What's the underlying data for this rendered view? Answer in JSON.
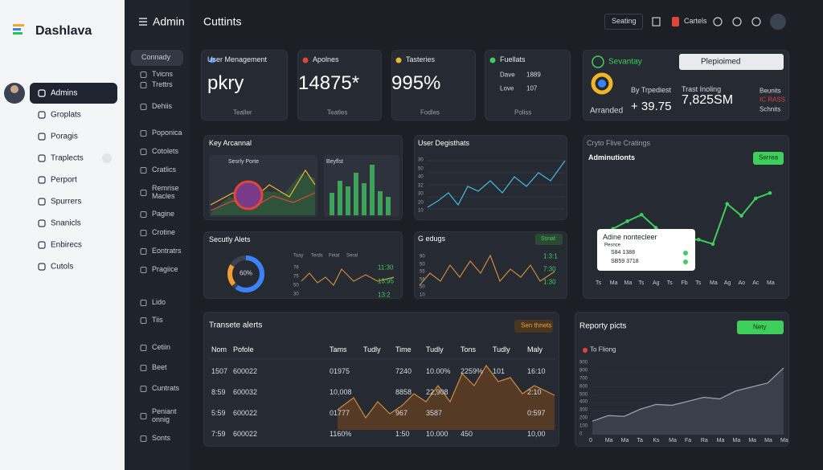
{
  "sidebar": {
    "brand": "Dashlava",
    "items": [
      "Admins",
      "Groplats",
      "Poragis",
      "Traplects",
      "Perport",
      "Spurrers",
      "Snanicls",
      "Enbirecs",
      "Cutols"
    ]
  },
  "subnav": {
    "title": "Admin",
    "items": [
      "Connady",
      "Tvicns",
      "Trettrs",
      "Dehiis",
      "Poponica",
      "Cotolets",
      "Cratlics",
      "Remrise Macles",
      "Pagine",
      "Crotine",
      "Eontratrs",
      "Pragiice",
      "Lido",
      "Tiis",
      "Cetiin",
      "Beet",
      "Cuntrats",
      "Peniant onnig",
      "Sonts"
    ]
  },
  "topbar": {
    "title": "Cuttints",
    "button": "Seating",
    "user": "Cartels"
  },
  "stats": [
    {
      "title": "User Menagement",
      "value": "pkry",
      "action": "Tealler"
    },
    {
      "title": "Apolnes",
      "value": "14875*",
      "action": "Teatles"
    },
    {
      "title": "Tasteries",
      "value": "995%",
      "action": "Fodles"
    },
    {
      "title": "Fuellats",
      "lines": [
        "Dave",
        "1889",
        "Love",
        "107"
      ],
      "action": "Poliss"
    }
  ],
  "summary": {
    "status": "Sevantay",
    "select": "Plepioimed",
    "label": "Arranded",
    "metric_label": "By Trpediest",
    "metric": "+ 39.75",
    "total_label": "Trast Inoling",
    "total": "7,825SM",
    "legend": [
      "Beunits",
      "IC RASS",
      "Schnits"
    ]
  },
  "key": {
    "title": "Key Arcannal",
    "chart1": "Sesrly Porte",
    "chart2": "Beyflst"
  },
  "users": {
    "title": "User Degisthats",
    "axis": [
      "30",
      "50",
      "40",
      "32",
      "30",
      "20",
      "10"
    ]
  },
  "security": {
    "title": "Secutly Alets",
    "gauge": "60%",
    "cols": [
      "Tsay",
      "Terds",
      "Fetal",
      "Seral"
    ],
    "axis": [
      "76",
      "75",
      "50",
      "30"
    ],
    "values": [
      "11:30",
      "13:95",
      "13:2"
    ]
  },
  "edugs": {
    "title": "G edugs",
    "button": "Ssnat",
    "axis": [
      "90",
      "50",
      "55",
      "56",
      "50",
      "10"
    ],
    "values": [
      "1:3:1",
      "7:30",
      "1:30"
    ]
  },
  "table": {
    "title": "Transete alerts",
    "button": "Sen thnets",
    "columns": [
      "Nom",
      "Pofole",
      "Tams",
      "Tudly",
      "Time",
      "Tudly",
      "Tons",
      "Tudly",
      "Maly"
    ],
    "rows": [
      [
        "1507",
        "600022",
        "01975",
        null,
        "7240",
        "10.00%",
        "2259%",
        "101",
        "16:10"
      ],
      [
        "8:59",
        "600032",
        "10,008",
        null,
        "8858",
        "22,908",
        null,
        null,
        "2:10"
      ],
      [
        "5:59",
        "600022",
        "01777",
        null,
        "967",
        "3587",
        null,
        null,
        "0:597"
      ],
      [
        "7:59",
        "600022",
        "1160%",
        null,
        "1:50",
        "10.000",
        "450",
        null,
        "10,00"
      ]
    ]
  },
  "ratings": {
    "heading": "Cryto Flive Cratings",
    "title": "Adminutionts",
    "button": "Serrea",
    "type": "line",
    "categories": [
      "Ts",
      "Ma",
      "Ma",
      "Ts",
      "Ag",
      "Ts",
      "Fb",
      "Ts",
      "Ma",
      "Ag",
      "Ao",
      "Ac",
      "Ma"
    ],
    "values": [
      null,
      52,
      59,
      65,
      53,
      42,
      42,
      42,
      38,
      75,
      64,
      80,
      85
    ],
    "ylim": [
      0,
      100
    ],
    "color": "#3ecf5a",
    "popup": {
      "title": "Adine nontecleer",
      "subtitle": "Pesnce",
      "lines": [
        "S84 1388",
        "SB59 3718"
      ]
    }
  },
  "report": {
    "title": "Reporty picts",
    "button": "Nety",
    "legend": "To Fliong",
    "type": "area",
    "categories": [
      "0",
      "Ma",
      "Ma",
      "Ta",
      "Ks",
      "Ma",
      "Fa",
      "Ra",
      "Ma",
      "Ma",
      "Ma",
      "Ma",
      "Ma"
    ],
    "values": [
      170,
      240,
      230,
      320,
      380,
      370,
      420,
      470,
      450,
      550,
      600,
      650,
      840
    ],
    "ylim": [
      0,
      900
    ],
    "yticks": [
      0,
      100,
      200,
      300,
      400,
      500,
      600,
      700,
      800,
      900
    ],
    "color": "#9aa0ab"
  }
}
